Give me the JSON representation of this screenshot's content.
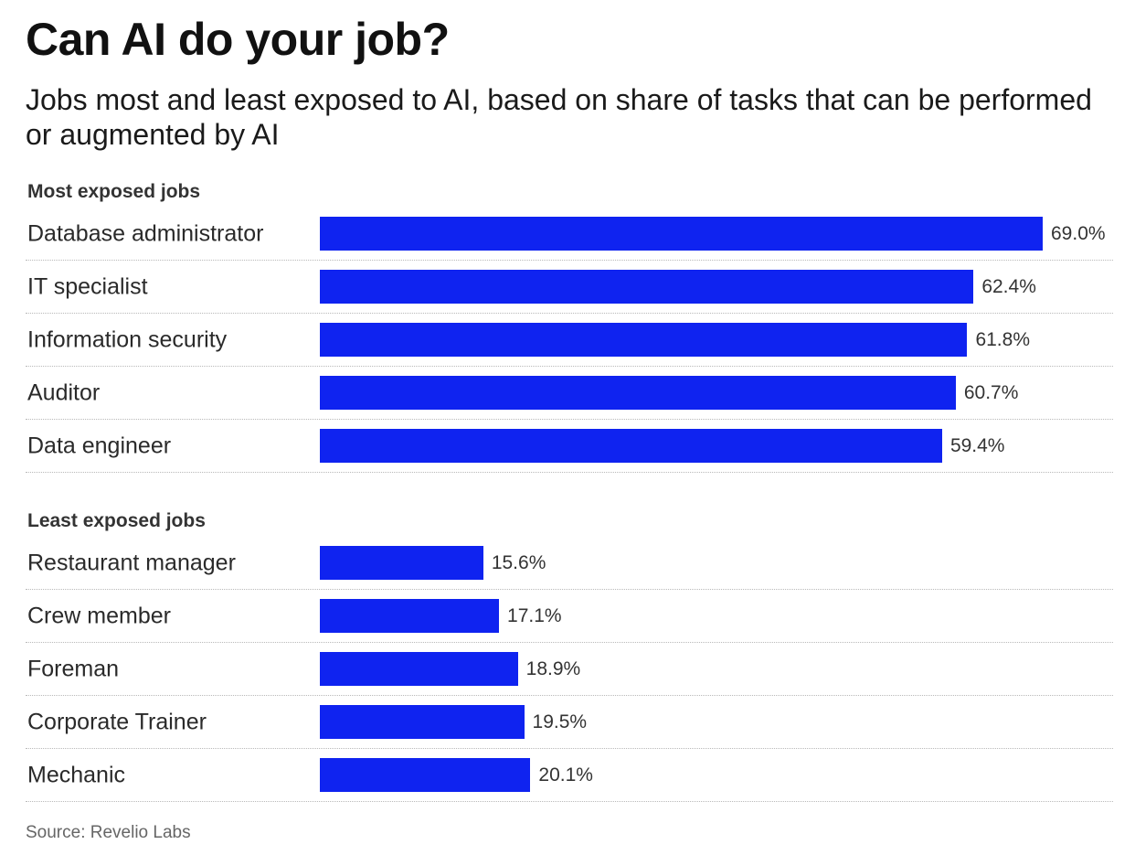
{
  "chart_data": {
    "type": "bar",
    "title": "Can AI do your job?",
    "subtitle": "Jobs most and least exposed to AI, based on share of tasks that can be performed or augmented by AI",
    "unit": "%",
    "xlim": [
      0,
      69.0
    ],
    "groups": [
      {
        "name": "Most exposed jobs",
        "categories": [
          "Database administrator",
          "IT specialist",
          "Information security",
          "Auditor",
          "Data engineer"
        ],
        "values": [
          69.0,
          62.4,
          61.8,
          60.7,
          59.4
        ],
        "labels": [
          "69.0%",
          "62.4%",
          "61.8%",
          "60.7%",
          "59.4%"
        ]
      },
      {
        "name": "Least exposed jobs",
        "categories": [
          "Restaurant manager",
          "Crew member",
          "Foreman",
          "Corporate Trainer",
          "Mechanic"
        ],
        "values": [
          15.6,
          17.1,
          18.9,
          19.5,
          20.1
        ],
        "labels": [
          "15.6%",
          "17.1%",
          "18.9%",
          "19.5%",
          "20.1%"
        ]
      }
    ],
    "bar_color": "#0f23f0",
    "source": "Source: Revelio Labs"
  }
}
